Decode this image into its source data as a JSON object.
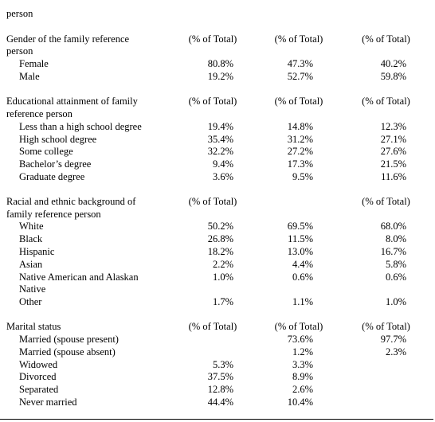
{
  "top_line": "person",
  "sections": [
    {
      "heading_lines": [
        "Gender of the family reference",
        "person"
      ],
      "col_headers": [
        "(% of Total)",
        "(% of Total)",
        "(% of Total)"
      ],
      "rows": [
        {
          "label": "Female",
          "values": [
            "80.8%",
            "47.3%",
            "40.2%"
          ]
        },
        {
          "label": "Male",
          "values": [
            "19.2%",
            "52.7%",
            "59.8%"
          ]
        }
      ]
    },
    {
      "heading_lines": [
        "Educational attainment of family",
        "reference person"
      ],
      "col_headers": [
        "(% of Total)",
        "(% of Total)",
        "(% of Total)"
      ],
      "rows": [
        {
          "label": "Less than a high school degree",
          "values": [
            "19.4%",
            "14.8%",
            "12.3%"
          ]
        },
        {
          "label": "High school degree",
          "values": [
            "35.4%",
            "31.2%",
            "27.1%"
          ]
        },
        {
          "label": "Some college",
          "values": [
            "32.2%",
            "27.2%",
            "27.6%"
          ]
        },
        {
          "label": "Bachelor’s degree",
          "values": [
            "9.4%",
            "17.3%",
            "21.5%"
          ]
        },
        {
          "label": "Graduate degree",
          "values": [
            "3.6%",
            "9.5%",
            "11.6%"
          ]
        }
      ]
    },
    {
      "heading_lines": [
        "Racial and ethnic background of",
        "family reference person"
      ],
      "col_headers": [
        "(% of Total)",
        "",
        "(% of Total)"
      ],
      "rows": [
        {
          "label": "White",
          "values": [
            "50.2%",
            "69.5%",
            "68.0%"
          ]
        },
        {
          "label": "Black",
          "values": [
            "26.8%",
            "11.5%",
            "8.0%"
          ]
        },
        {
          "label": "Hispanic",
          "values": [
            "18.2%",
            "13.0%",
            "16.7%"
          ]
        },
        {
          "label": "Asian",
          "values": [
            "2.2%",
            "4.4%",
            "5.8%"
          ]
        },
        {
          "label": "Native American and Alaskan",
          "label2": "Native",
          "values": [
            "1.0%",
            "0.6%",
            "0.6%"
          ]
        },
        {
          "label": "Other",
          "values": [
            "1.7%",
            "1.1%",
            "1.0%"
          ]
        }
      ]
    },
    {
      "heading_lines": [
        "Marital status"
      ],
      "col_headers": [
        "(% of Total)",
        "(% of Total)",
        "(% of Total)"
      ],
      "rows": [
        {
          "label": "Married (spouse present)",
          "values": [
            "",
            "73.6%",
            "97.7%"
          ]
        },
        {
          "label": "Married (spouse absent)",
          "values": [
            "",
            "1.2%",
            "2.3%"
          ]
        },
        {
          "label": "Widowed",
          "values": [
            "5.3%",
            "3.3%",
            ""
          ]
        },
        {
          "label": "Divorced",
          "values": [
            "37.5%",
            "8.9%",
            ""
          ]
        },
        {
          "label": "Separated",
          "values": [
            "12.8%",
            "2.6%",
            ""
          ]
        },
        {
          "label": "Never married",
          "values": [
            "44.4%",
            "10.4%",
            ""
          ]
        }
      ]
    }
  ]
}
